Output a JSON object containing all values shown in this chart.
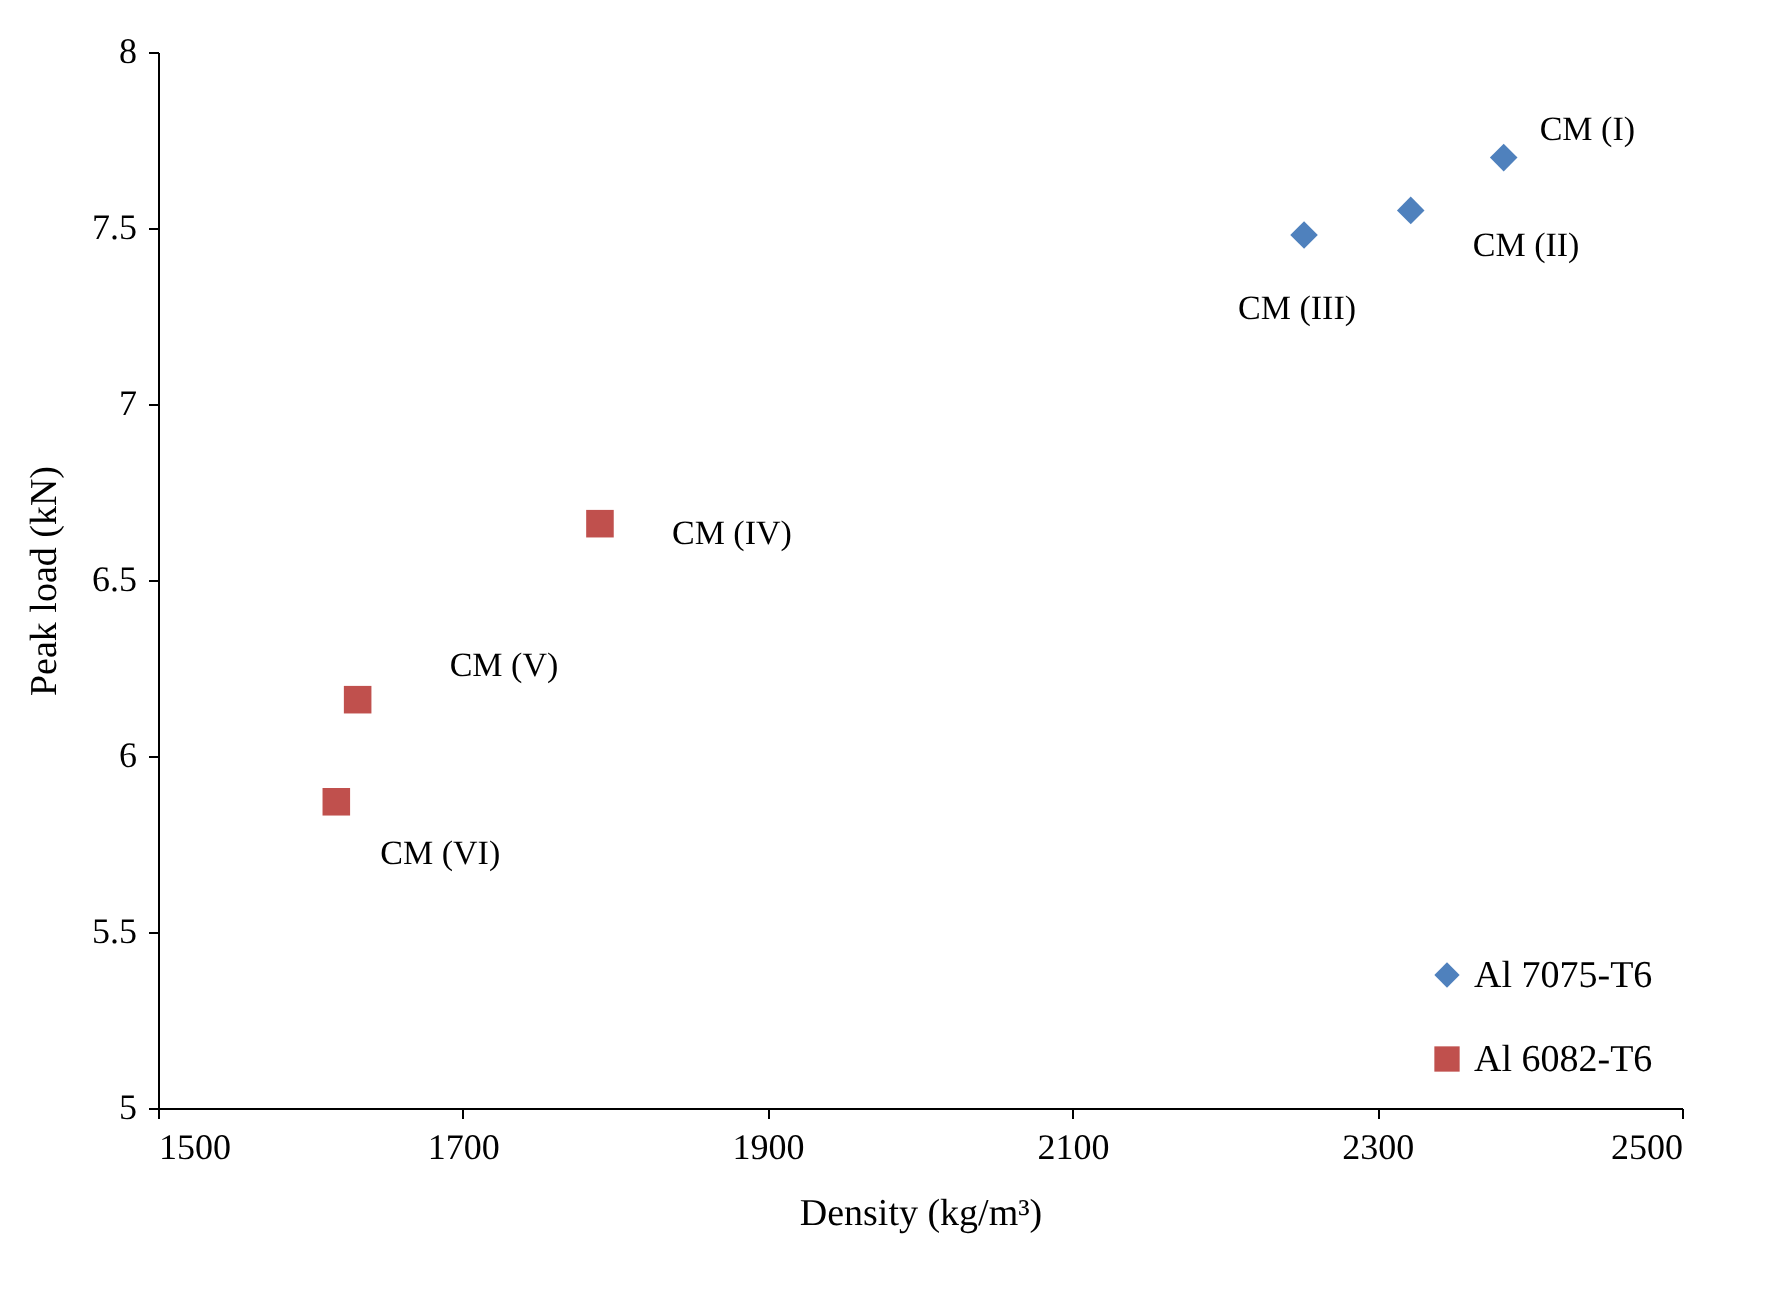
{
  "chart_data": {
    "type": "scatter",
    "xlabel": "Density (kg/m³)",
    "ylabel": "Peak load (kN)",
    "xlim": [
      1500,
      2500
    ],
    "xticks": [
      1500,
      1700,
      1900,
      2100,
      2300,
      2500
    ],
    "ylim": [
      5,
      8
    ],
    "yticks": [
      5,
      5.5,
      6,
      6.5,
      7,
      7.5,
      8
    ],
    "series": [
      {
        "name": "Al 7075-T6",
        "color": "#4f81bd",
        "marker": "diamond",
        "x": [
          2383,
          2322,
          2252
        ],
        "values": [
          7.7,
          7.55,
          7.48
        ]
      },
      {
        "name": "Al 6082-T6",
        "color": "#c0504d",
        "marker": "square",
        "x": [
          1790,
          1631,
          1617
        ],
        "values": [
          6.66,
          6.16,
          5.87
        ]
      }
    ],
    "annotations": [
      {
        "text": "CM (I)",
        "x": 2383,
        "y": 7.7
      },
      {
        "text": "CM (II)",
        "x": 2322,
        "y": 7.55
      },
      {
        "text": "CM (III)",
        "x": 2252,
        "y": 7.48
      },
      {
        "text": "CM (IV)",
        "x": 1790,
        "y": 6.66
      },
      {
        "text": "CM (V)",
        "x": 1631,
        "y": 6.16
      },
      {
        "text": "CM (VI)",
        "x": 1617,
        "y": 5.87
      }
    ],
    "grid": false,
    "legend": "bottom right"
  }
}
